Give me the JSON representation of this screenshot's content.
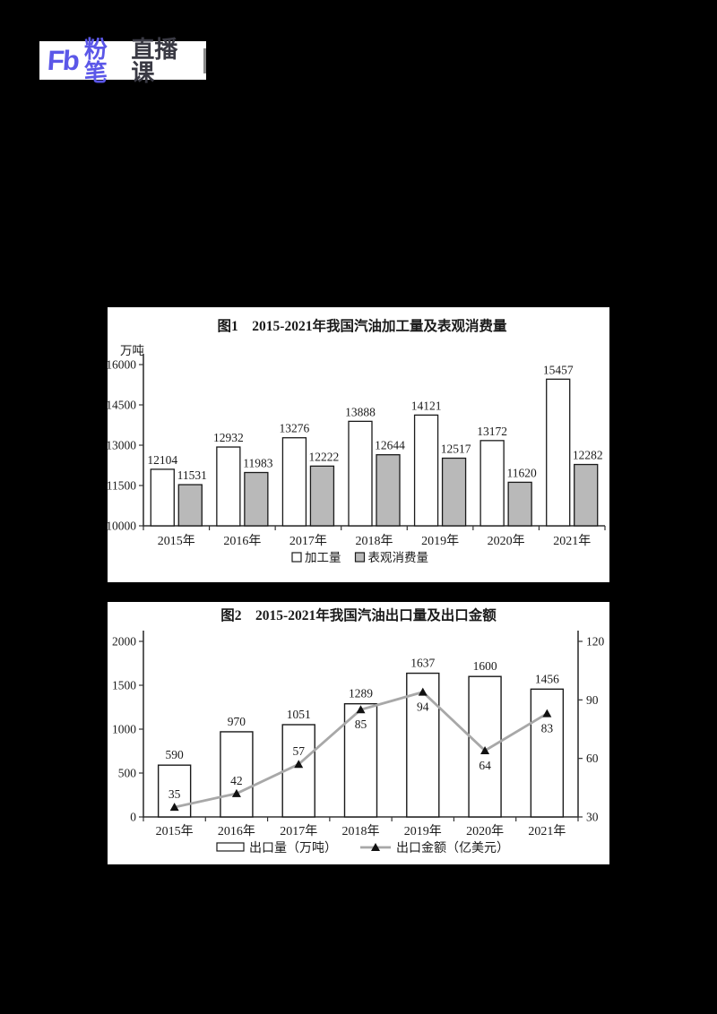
{
  "page": {
    "background": "#000000"
  },
  "logo": {
    "mark": "Fb",
    "brand": "粉笔",
    "suffix": "直播课"
  },
  "colors": {
    "logo_purple": "#5b57e8",
    "logo_dark": "#3a3a44",
    "chart_text": "#1a1a1a",
    "bar_white": "#ffffff",
    "bar_gray": "#b9b9b9",
    "line_gray": "#a8a8a8",
    "axis": "#333333"
  },
  "chart_data": [
    {
      "type": "bar",
      "title": "图1　2015-2021年我国汽油加工量及表观消费量",
      "unit_label": "万吨",
      "categories": [
        "2015年",
        "2016年",
        "2017年",
        "2018年",
        "2019年",
        "2020年",
        "2021年"
      ],
      "series": [
        {
          "name": "加工量",
          "fill": "#ffffff",
          "values": [
            12104,
            12932,
            13276,
            13888,
            14121,
            13172,
            15457
          ]
        },
        {
          "name": "表观消费量",
          "fill": "#b9b9b9",
          "values": [
            11531,
            11983,
            12222,
            12644,
            12517,
            11620,
            12282
          ]
        }
      ],
      "ylim": [
        10000,
        16000
      ],
      "yticks": [
        10000,
        11500,
        13000,
        14500,
        16000
      ],
      "grid": false,
      "legend_position": "bottom"
    },
    {
      "type": "bar+line",
      "title": "图2　2015-2021年我国汽油出口量及出口金额",
      "categories": [
        "2015年",
        "2016年",
        "2017年",
        "2018年",
        "2019年",
        "2020年",
        "2021年"
      ],
      "bar_series": {
        "name": "出口量（万吨）",
        "fill": "#ffffff",
        "values": [
          590,
          970,
          1051,
          1289,
          1637,
          1600,
          1456
        ]
      },
      "line_series": {
        "name": "出口金额（亿美元）",
        "color": "#a8a8a8",
        "marker": "triangle",
        "values": [
          35,
          42,
          57,
          85,
          94,
          64,
          83
        ]
      },
      "ylim_left": [
        0,
        2000
      ],
      "yticks_left": [
        0,
        500,
        1000,
        1500,
        2000
      ],
      "ylim_right": [
        30,
        120
      ],
      "yticks_right": [
        30,
        60,
        90,
        120
      ],
      "line_label_side": [
        "above",
        "above",
        "above",
        "below",
        "below",
        "below",
        "below"
      ],
      "grid": false,
      "legend_position": "bottom"
    }
  ]
}
